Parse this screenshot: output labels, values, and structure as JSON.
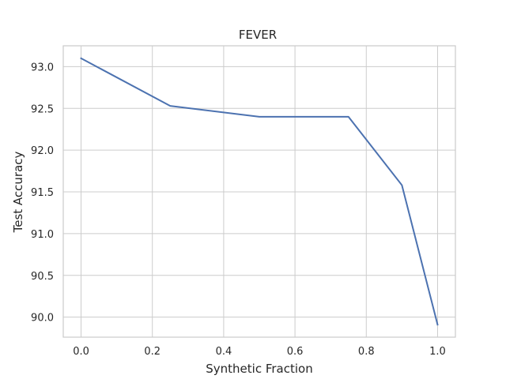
{
  "chart_data": {
    "type": "line",
    "title": "FEVER",
    "xlabel": "Synthetic Fraction",
    "ylabel": "Test Accuracy",
    "xlim": [
      -0.05,
      1.05
    ],
    "ylim": [
      89.76,
      93.25
    ],
    "xticks": [
      0.0,
      0.2,
      0.4,
      0.6,
      0.8,
      1.0
    ],
    "xtick_labels": [
      "0.0",
      "0.2",
      "0.4",
      "0.6",
      "0.8",
      "1.0"
    ],
    "yticks": [
      90.0,
      90.5,
      91.0,
      91.5,
      92.0,
      92.5,
      93.0
    ],
    "ytick_labels": [
      "90.0",
      "90.5",
      "91.0",
      "91.5",
      "92.0",
      "92.5",
      "93.0"
    ],
    "grid": true,
    "series": [
      {
        "color": "#4c72b0",
        "x": [
          0.0,
          0.25,
          0.5,
          0.75,
          0.9,
          1.0
        ],
        "y": [
          93.1,
          92.53,
          92.4,
          92.4,
          91.58,
          89.91
        ]
      }
    ]
  }
}
